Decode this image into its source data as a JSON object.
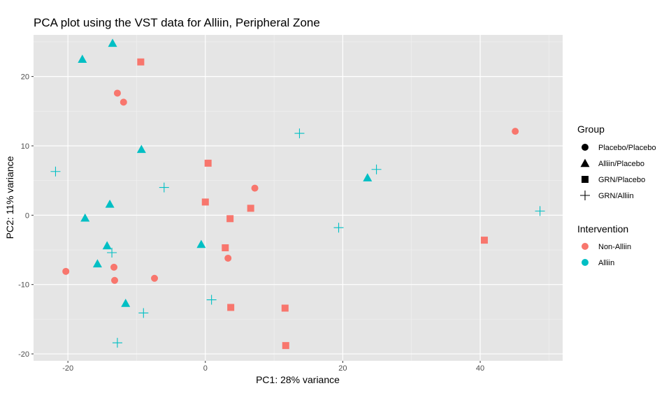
{
  "chart_data": {
    "type": "scatter",
    "title": "PCA plot using the VST data for Alliin, Peripheral Zone",
    "xlabel": "PC1: 28% variance",
    "ylabel": "PC2: 11% variance",
    "xlim": [
      -25,
      52
    ],
    "ylim": [
      -21,
      26
    ],
    "xticks": [
      -20,
      0,
      20,
      40
    ],
    "yticks": [
      -20,
      -10,
      0,
      10,
      20
    ],
    "xtick_labels": [
      "-20",
      "0",
      "20",
      "40"
    ],
    "ytick_labels": [
      "-20",
      "-10",
      "0",
      "10",
      "20"
    ],
    "grid": true,
    "panel_background": "#e5e5e5",
    "legend_position": "right",
    "shape_legend": {
      "title": "Group",
      "entries": [
        {
          "label": "Placebo/Placebo",
          "shape": "circle"
        },
        {
          "label": "Alliin/Placebo",
          "shape": "triangle"
        },
        {
          "label": "GRN/Placebo",
          "shape": "square"
        },
        {
          "label": "GRN/Alliin",
          "shape": "plus"
        }
      ]
    },
    "color_legend": {
      "title": "Intervention",
      "entries": [
        {
          "label": "Non-Alliin",
          "color": "#f8766d"
        },
        {
          "label": "Alliin",
          "color": "#00bfc4"
        }
      ]
    },
    "points": [
      {
        "x": -12.8,
        "y": 17.6,
        "group": "Placebo/Placebo",
        "intervention": "Non-Alliin"
      },
      {
        "x": -11.9,
        "y": 16.3,
        "group": "Placebo/Placebo",
        "intervention": "Non-Alliin"
      },
      {
        "x": 7.2,
        "y": 3.9,
        "group": "Placebo/Placebo",
        "intervention": "Non-Alliin"
      },
      {
        "x": 3.3,
        "y": -6.2,
        "group": "Placebo/Placebo",
        "intervention": "Non-Alliin"
      },
      {
        "x": -13.3,
        "y": -7.5,
        "group": "Placebo/Placebo",
        "intervention": "Non-Alliin"
      },
      {
        "x": -20.3,
        "y": -8.1,
        "group": "Placebo/Placebo",
        "intervention": "Non-Alliin"
      },
      {
        "x": -13.2,
        "y": -9.4,
        "group": "Placebo/Placebo",
        "intervention": "Non-Alliin"
      },
      {
        "x": -7.4,
        "y": -9.1,
        "group": "Placebo/Placebo",
        "intervention": "Non-Alliin"
      },
      {
        "x": 45.1,
        "y": 12.1,
        "group": "Placebo/Placebo",
        "intervention": "Non-Alliin"
      },
      {
        "x": -13.5,
        "y": 24.8,
        "group": "Alliin/Placebo",
        "intervention": "Alliin"
      },
      {
        "x": -17.9,
        "y": 22.5,
        "group": "Alliin/Placebo",
        "intervention": "Alliin"
      },
      {
        "x": -9.3,
        "y": 9.5,
        "group": "Alliin/Placebo",
        "intervention": "Alliin"
      },
      {
        "x": -13.9,
        "y": 1.6,
        "group": "Alliin/Placebo",
        "intervention": "Alliin"
      },
      {
        "x": -17.5,
        "y": -0.4,
        "group": "Alliin/Placebo",
        "intervention": "Alliin"
      },
      {
        "x": -14.3,
        "y": -4.4,
        "group": "Alliin/Placebo",
        "intervention": "Alliin"
      },
      {
        "x": -15.7,
        "y": -7.0,
        "group": "Alliin/Placebo",
        "intervention": "Alliin"
      },
      {
        "x": -11.6,
        "y": -12.7,
        "group": "Alliin/Placebo",
        "intervention": "Alliin"
      },
      {
        "x": -0.6,
        "y": -4.2,
        "group": "Alliin/Placebo",
        "intervention": "Alliin"
      },
      {
        "x": 23.6,
        "y": 5.4,
        "group": "Alliin/Placebo",
        "intervention": "Alliin"
      },
      {
        "x": -9.4,
        "y": 22.1,
        "group": "GRN/Placebo",
        "intervention": "Non-Alliin"
      },
      {
        "x": 0.4,
        "y": 7.5,
        "group": "GRN/Placebo",
        "intervention": "Non-Alliin"
      },
      {
        "x": 0.0,
        "y": 1.9,
        "group": "GRN/Placebo",
        "intervention": "Non-Alliin"
      },
      {
        "x": 6.6,
        "y": 1.0,
        "group": "GRN/Placebo",
        "intervention": "Non-Alliin"
      },
      {
        "x": 3.6,
        "y": -0.5,
        "group": "GRN/Placebo",
        "intervention": "Non-Alliin"
      },
      {
        "x": 2.9,
        "y": -4.7,
        "group": "GRN/Placebo",
        "intervention": "Non-Alliin"
      },
      {
        "x": 3.7,
        "y": -13.3,
        "group": "GRN/Placebo",
        "intervention": "Non-Alliin"
      },
      {
        "x": 11.6,
        "y": -13.4,
        "group": "GRN/Placebo",
        "intervention": "Non-Alliin"
      },
      {
        "x": 11.7,
        "y": -18.8,
        "group": "GRN/Placebo",
        "intervention": "Non-Alliin"
      },
      {
        "x": 40.6,
        "y": -3.6,
        "group": "GRN/Placebo",
        "intervention": "Non-Alliin"
      },
      {
        "x": -21.8,
        "y": 6.3,
        "group": "GRN/Alliin",
        "intervention": "Alliin"
      },
      {
        "x": -6.0,
        "y": 4.0,
        "group": "GRN/Alliin",
        "intervention": "Alliin"
      },
      {
        "x": 13.7,
        "y": 11.8,
        "group": "GRN/Alliin",
        "intervention": "Alliin"
      },
      {
        "x": 24.9,
        "y": 6.6,
        "group": "GRN/Alliin",
        "intervention": "Alliin"
      },
      {
        "x": 48.7,
        "y": 0.6,
        "group": "GRN/Alliin",
        "intervention": "Alliin"
      },
      {
        "x": 19.4,
        "y": -1.8,
        "group": "GRN/Alliin",
        "intervention": "Alliin"
      },
      {
        "x": -13.6,
        "y": -5.4,
        "group": "GRN/Alliin",
        "intervention": "Alliin"
      },
      {
        "x": 0.9,
        "y": -12.2,
        "group": "GRN/Alliin",
        "intervention": "Alliin"
      },
      {
        "x": -9.0,
        "y": -14.1,
        "group": "GRN/Alliin",
        "intervention": "Alliin"
      },
      {
        "x": -12.8,
        "y": -18.4,
        "group": "GRN/Alliin",
        "intervention": "Alliin"
      }
    ]
  }
}
